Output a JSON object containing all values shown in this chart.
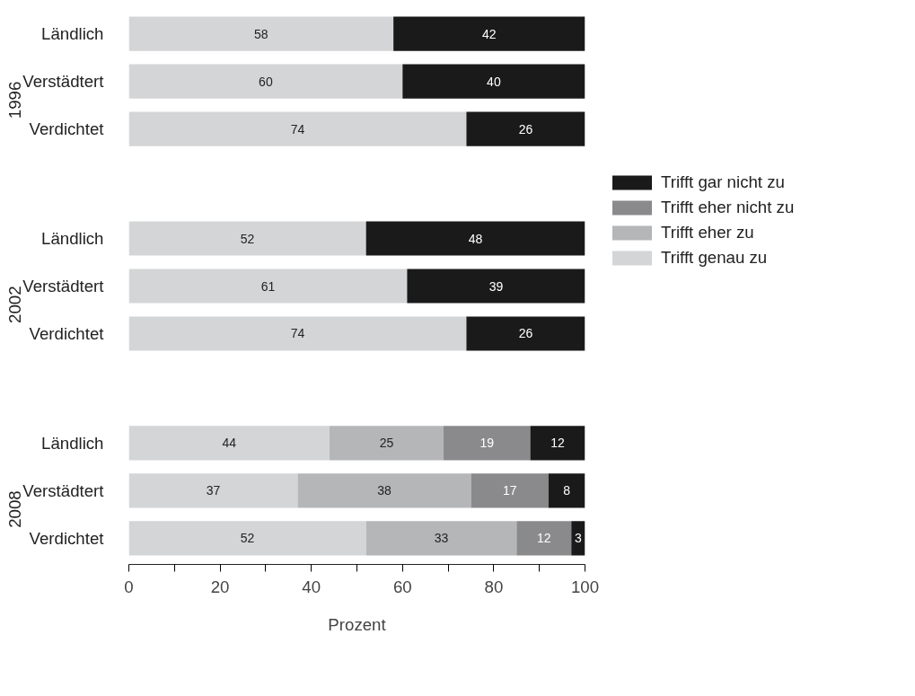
{
  "chart_data": {
    "type": "bar",
    "orientation": "horizontal",
    "stacked": true,
    "xlabel": "Prozent",
    "categories": [
      "Ländlich",
      "Verstädtert",
      "Verdichtet",
      "Ländlich",
      "Verstädtert",
      "Verdichtet",
      "Ländlich",
      "Verstädtert",
      "Verdichtet"
    ],
    "annotations": [
      "1996",
      "2002",
      "2008"
    ],
    "series": [
      {
        "name": "Trifft genau zu",
        "color": "#d4d5d7",
        "values": [
          58,
          60,
          74,
          52,
          61,
          74,
          44,
          37,
          52
        ]
      },
      {
        "name": "Trifft eher zu",
        "color": "#b5b6b8",
        "values": [
          null,
          null,
          null,
          null,
          null,
          null,
          25,
          38,
          33
        ]
      },
      {
        "name": "Trifft eher nicht zu",
        "color": "#8a8a8c",
        "values": [
          null,
          null,
          null,
          null,
          null,
          null,
          19,
          17,
          12
        ]
      },
      {
        "name": "Trifft gar nicht zu",
        "color": "#1a1a1a",
        "values": [
          42,
          40,
          26,
          48,
          39,
          26,
          12,
          8,
          3
        ]
      }
    ],
    "xlim": [
      0,
      100
    ],
    "xticks": [
      0,
      {
        "value": 10,
        "label": null
      },
      20,
      {
        "value": 30,
        "label": null
      },
      40,
      {
        "value": 50,
        "label": null
      },
      60,
      {
        "value": 70,
        "label": null
      },
      80,
      {
        "value": 90,
        "label": null
      },
      100
    ],
    "data_labels": true,
    "grid": false,
    "legend": "right"
  }
}
